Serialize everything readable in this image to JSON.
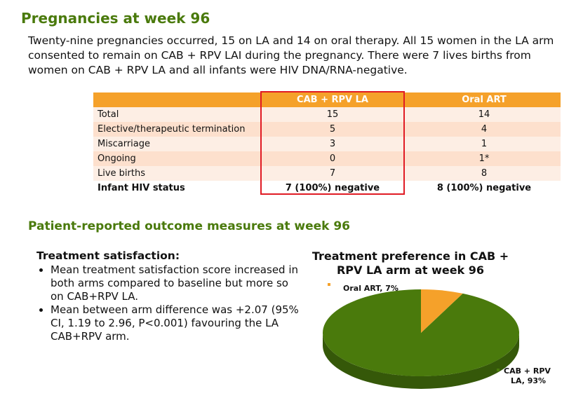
{
  "heading": "Pregnancies at week 96",
  "intro": "Twenty-nine pregnancies occurred, 15 on LA and 14 on oral therapy. All 15 women in the LA arm consented to remain on CAB + RPV LAI during the pregnancy. There were 7 lives births from women on CAB + RPV LA and all infants were HIV DNA/RNA-negative.",
  "table": {
    "headers": [
      "",
      "CAB + RPV LA",
      "Oral ART"
    ],
    "rows": [
      {
        "label": "Total",
        "la": "15",
        "oral": "14"
      },
      {
        "label": "Elective/therapeutic termination",
        "la": "5",
        "oral": "4"
      },
      {
        "label": "Miscarriage",
        "la": "3",
        "oral": "1"
      },
      {
        "label": "Ongoing",
        "la": "0",
        "oral": "1*"
      },
      {
        "label": "Live births",
        "la": "7",
        "oral": "8"
      },
      {
        "label": "Infant HIV status",
        "la": "7 (100%) negative",
        "oral": "8 (100%) negative"
      }
    ]
  },
  "section2_heading": "Patient-reported outcome measures at week 96",
  "satisfaction": {
    "title": "Treatment satisfaction:",
    "bullets": [
      "Mean treatment satisfaction score increased in both arms compared to baseline but more so on CAB+RPV LA.",
      "Mean between arm difference was +2.07 (95% CI, 1.19 to 2.96, P<0.001) favouring the LA CAB+RPV arm."
    ]
  },
  "chart_data": {
    "type": "pie",
    "title": "Treatment preference in CAB + RPV LA arm at week 96",
    "slices": [
      {
        "label": "Oral ART, 7%",
        "value": 7,
        "color": "#f5a12a"
      },
      {
        "label": "CAB + RPV LA, 93%",
        "value": 93,
        "color": "#4a7a0c"
      }
    ],
    "legend_labels": {
      "oral": "Oral ART, 7%",
      "la_line1": "CAB + RPV",
      "la_line2": "LA, 93%"
    }
  }
}
